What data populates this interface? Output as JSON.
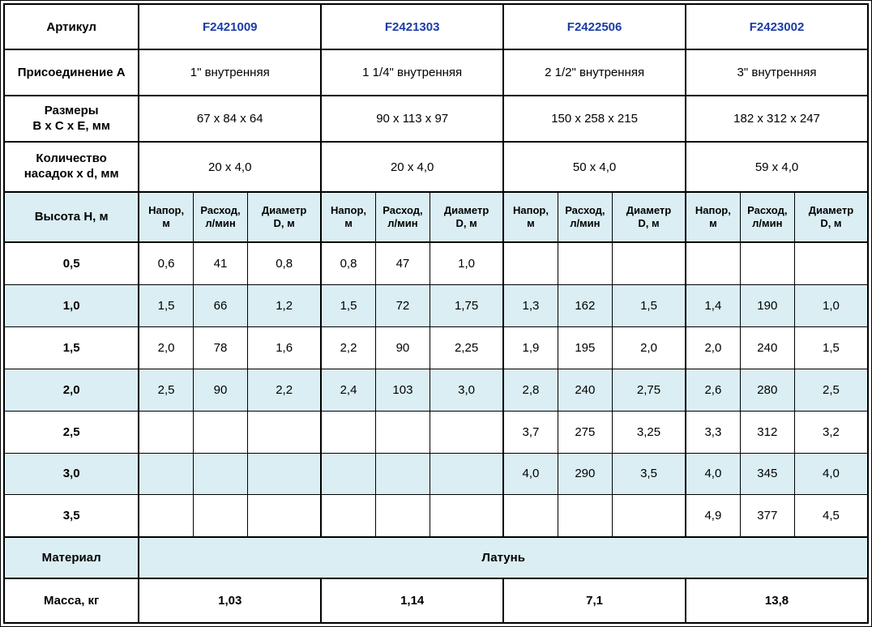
{
  "colors": {
    "band": "#DAEEF3",
    "article_text": "#1B3CA6",
    "border": "#000000",
    "background": "#FFFFFF"
  },
  "table": {
    "corner_label": "Артикул",
    "row_labels": {
      "connection": "Присоединение А",
      "dimensions": "Размеры\nВ х С х Е, мм",
      "nozzles": "Количество\nнасадок х d, мм",
      "height": "Высота Н, м",
      "material": "Материал",
      "mass": "Масса, кг"
    },
    "subheaders": [
      "Напор,\nм",
      "Расход,\nл/мин",
      "Диаметр\nD, м"
    ],
    "articles": [
      {
        "code": "F2421009",
        "connection": "1\" внутренняя",
        "dimensions": "67 x 84 x 64",
        "nozzles": "20 x 4,0",
        "mass": "1,03"
      },
      {
        "code": "F2421303",
        "connection": "1 1/4\" внутренняя",
        "dimensions": "90 x 113 x 97",
        "nozzles": "20 x 4,0",
        "mass": "1,14"
      },
      {
        "code": "F2422506",
        "connection": "2 1/2\" внутренняя",
        "dimensions": "150 x 258 x 215",
        "nozzles": "50 x 4,0",
        "mass": "7,1"
      },
      {
        "code": "F2423002",
        "connection": "3\" внутренняя",
        "dimensions": "182 x 312 x 247",
        "nozzles": "59 x 4,0",
        "mass": "13,8"
      }
    ],
    "material_value": "Латунь",
    "height_rows": [
      {
        "height": "0,5",
        "groups": [
          [
            "0,6",
            "41",
            "0,8"
          ],
          [
            "0,8",
            "47",
            "1,0"
          ],
          [
            "",
            "",
            ""
          ],
          [
            "",
            "",
            ""
          ]
        ]
      },
      {
        "height": "1,0",
        "groups": [
          [
            "1,5",
            "66",
            "1,2"
          ],
          [
            "1,5",
            "72",
            "1,75"
          ],
          [
            "1,3",
            "162",
            "1,5"
          ],
          [
            "1,4",
            "190",
            "1,0"
          ]
        ]
      },
      {
        "height": "1,5",
        "groups": [
          [
            "2,0",
            "78",
            "1,6"
          ],
          [
            "2,2",
            "90",
            "2,25"
          ],
          [
            "1,9",
            "195",
            "2,0"
          ],
          [
            "2,0",
            "240",
            "1,5"
          ]
        ]
      },
      {
        "height": "2,0",
        "groups": [
          [
            "2,5",
            "90",
            "2,2"
          ],
          [
            "2,4",
            "103",
            "3,0"
          ],
          [
            "2,8",
            "240",
            "2,75"
          ],
          [
            "2,6",
            "280",
            "2,5"
          ]
        ]
      },
      {
        "height": "2,5",
        "groups": [
          [
            "",
            "",
            ""
          ],
          [
            "",
            "",
            ""
          ],
          [
            "3,7",
            "275",
            "3,25"
          ],
          [
            "3,3",
            "312",
            "3,2"
          ]
        ]
      },
      {
        "height": "3,0",
        "groups": [
          [
            "",
            "",
            ""
          ],
          [
            "",
            "",
            ""
          ],
          [
            "4,0",
            "290",
            "3,5"
          ],
          [
            "4,0",
            "345",
            "4,0"
          ]
        ]
      },
      {
        "height": "3,5",
        "groups": [
          [
            "",
            "",
            ""
          ],
          [
            "",
            "",
            ""
          ],
          [
            "",
            "",
            ""
          ],
          [
            "4,9",
            "377",
            "4,5"
          ]
        ]
      }
    ]
  }
}
